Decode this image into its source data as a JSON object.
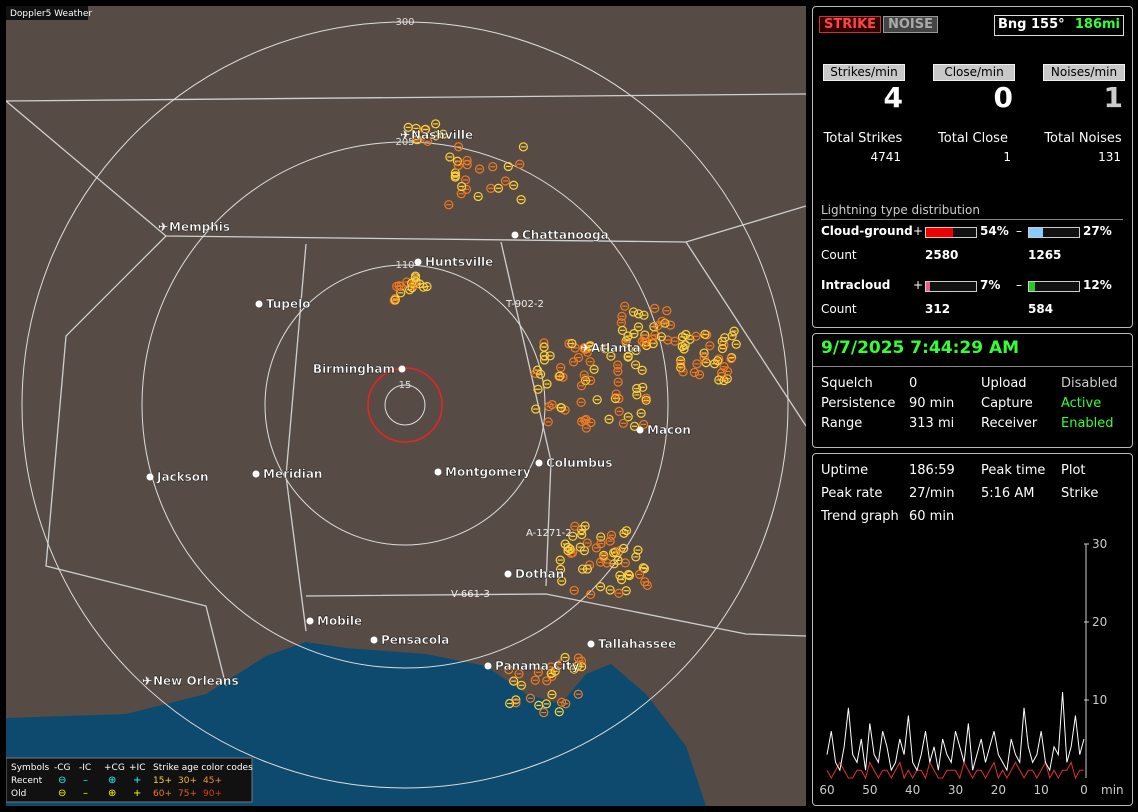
{
  "map": {
    "title": "Doppler5 Weather",
    "range_rings": [
      300,
      205,
      110,
      15
    ],
    "cities": [
      {
        "name": "Nashville",
        "airport": true
      },
      {
        "name": "Memphis",
        "airport": true
      },
      {
        "name": "Chattanooga",
        "airport": false
      },
      {
        "name": "Huntsville",
        "airport": false
      },
      {
        "name": "Tupelo",
        "airport": false
      },
      {
        "name": "Atlanta",
        "airport": true
      },
      {
        "name": "Birmingham",
        "airport": false
      },
      {
        "name": "Macon",
        "airport": false
      },
      {
        "name": "Columbus",
        "airport": false
      },
      {
        "name": "Montgomery",
        "airport": false
      },
      {
        "name": "Jackson",
        "airport": false
      },
      {
        "name": "Meridian",
        "airport": false
      },
      {
        "name": "Dothan",
        "airport": false
      },
      {
        "name": "Mobile",
        "airport": false
      },
      {
        "name": "Pensacola",
        "airport": false
      },
      {
        "name": "Tallahassee",
        "airport": false
      },
      {
        "name": "Panama City",
        "airport": false
      },
      {
        "name": "New Orleans",
        "airport": true
      }
    ],
    "tracks": [
      "T-902-2",
      "A-1271-2",
      "V-661-3"
    ]
  },
  "legend": {
    "symbols": "Symbols",
    "types": [
      "-CG",
      "-IC",
      "+CG",
      "+IC"
    ],
    "age_title": "Strike age color codes",
    "rows": [
      {
        "label": "Recent",
        "ages": [
          "15+",
          "30+",
          "45+"
        ]
      },
      {
        "label": "Old",
        "ages": [
          "60+",
          "75+",
          "90+"
        ]
      }
    ]
  },
  "status": {
    "strike": "STRIKE",
    "noise": "NOISE",
    "bearing": "Bng 155°",
    "distance": "186mi"
  },
  "rates": [
    {
      "label": "Strikes/min",
      "value": 4,
      "total_label": "Total Strikes",
      "total": 4741
    },
    {
      "label": "Close/min",
      "value": 0,
      "total_label": "Total Close",
      "total": 1
    },
    {
      "label": "Noises/min",
      "value": 1,
      "total_label": "Total Noises",
      "total": 131
    }
  ],
  "distribution": {
    "title": "Lightning type distribution",
    "count_label": "Count",
    "signs": [
      "+",
      "–"
    ],
    "rows": [
      {
        "label": "Cloud-ground",
        "positive": {
          "value": 54,
          "label": "54%"
        },
        "negative": {
          "value": 27,
          "label": "27%"
        },
        "positive_count": 2580,
        "negative_count": 1265
      },
      {
        "label": "Intracloud",
        "positive": {
          "value": 7,
          "label": "7%"
        },
        "negative": {
          "value": 12,
          "label": "12%"
        },
        "positive_count": 312,
        "negative_count": 584
      }
    ]
  },
  "timestamp": "9/7/2025 7:44:29 AM",
  "settings": [
    [
      "Squelch",
      "0",
      "Upload",
      "Disabled"
    ],
    [
      "Persistence",
      "90 min",
      "Capture",
      "Active"
    ],
    [
      "Range",
      "313 mi",
      "Receiver",
      "Enabled"
    ]
  ],
  "uptime": [
    [
      "Uptime",
      "186:59",
      "Peak time",
      "Plot"
    ],
    [
      "Peak rate",
      "27/min",
      "5:16 AM",
      "Strike"
    ],
    [
      "Trend graph",
      "60 min"
    ]
  ],
  "trend": {
    "type": "line",
    "ylim": [
      0,
      30
    ],
    "yticks": [
      10,
      20,
      30
    ],
    "xlim": [
      60,
      0
    ],
    "xticks": [
      60,
      50,
      40,
      30,
      20,
      10,
      0
    ],
    "x_label": "min",
    "series": [
      {
        "color": "#ffffff",
        "values": [
          3,
          6,
          2,
          1,
          4,
          9,
          3,
          2,
          5,
          1,
          7,
          3,
          2,
          6,
          4,
          1,
          2,
          5,
          3,
          8,
          2,
          1,
          3,
          6,
          2,
          4,
          1,
          5,
          3,
          2,
          6,
          4,
          2,
          7,
          1,
          3,
          5,
          2,
          4,
          6,
          3,
          2,
          1,
          5,
          3,
          2,
          9,
          4,
          2,
          3,
          6,
          2,
          1,
          4,
          3,
          11,
          2,
          4,
          8,
          3,
          5
        ]
      },
      {
        "color": "#e03030",
        "values": [
          1,
          0,
          1,
          2,
          1,
          0,
          0,
          1,
          1,
          0,
          2,
          1,
          0,
          1,
          1,
          0,
          1,
          2,
          0,
          1,
          0,
          1,
          1,
          0,
          2,
          1,
          0,
          0,
          1,
          1,
          1,
          0,
          2,
          1,
          0,
          1,
          1,
          0,
          1,
          2,
          0,
          1,
          0,
          1,
          2,
          1,
          0,
          1,
          1,
          0,
          1,
          2,
          0,
          1,
          0,
          1,
          1,
          2,
          0,
          1,
          1
        ]
      }
    ]
  }
}
